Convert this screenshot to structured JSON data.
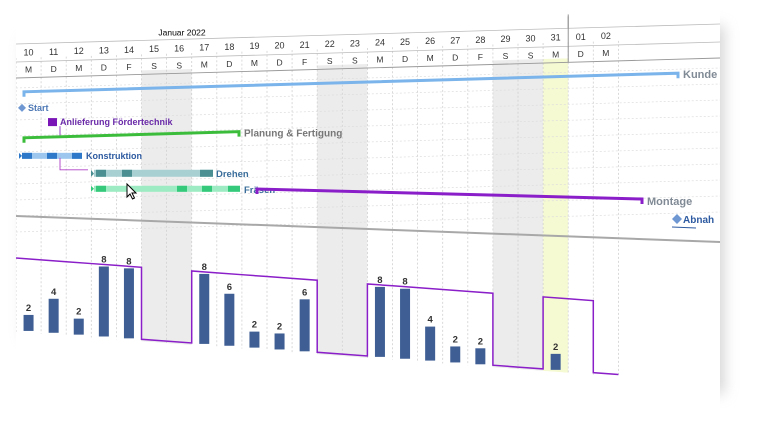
{
  "header": {
    "month_label": "Januar 2022"
  },
  "timeline": {
    "days": [
      {
        "num": "10",
        "wd": "M"
      },
      {
        "num": "11",
        "wd": "D"
      },
      {
        "num": "12",
        "wd": "M"
      },
      {
        "num": "13",
        "wd": "D"
      },
      {
        "num": "14",
        "wd": "F"
      },
      {
        "num": "15",
        "wd": "S"
      },
      {
        "num": "16",
        "wd": "S"
      },
      {
        "num": "17",
        "wd": "M"
      },
      {
        "num": "18",
        "wd": "D"
      },
      {
        "num": "19",
        "wd": "M"
      },
      {
        "num": "20",
        "wd": "D"
      },
      {
        "num": "21",
        "wd": "F"
      },
      {
        "num": "22",
        "wd": "S"
      },
      {
        "num": "23",
        "wd": "S"
      },
      {
        "num": "24",
        "wd": "M"
      },
      {
        "num": "25",
        "wd": "D"
      },
      {
        "num": "26",
        "wd": "M"
      },
      {
        "num": "27",
        "wd": "D"
      },
      {
        "num": "28",
        "wd": "F"
      },
      {
        "num": "29",
        "wd": "S"
      },
      {
        "num": "30",
        "wd": "S"
      },
      {
        "num": "31",
        "wd": "M"
      },
      {
        "num": "01",
        "wd": "D"
      },
      {
        "num": "02",
        "wd": "M"
      }
    ],
    "weekend_indices": [
      5,
      6,
      12,
      13,
      19,
      20
    ],
    "highlight_index": 21
  },
  "tasks": {
    "kunde": "Kunde",
    "start": "Start",
    "anlieferung": "Anlieferung Fördertechnik",
    "planung": "Planung & Fertigung",
    "konstruktion": "Konstruktion",
    "drehen": "Drehen",
    "fraesen": "Fräsen",
    "montage": "Montage",
    "abnahme": "Abnah"
  },
  "chart_data": {
    "type": "bar",
    "title": "",
    "categories": [
      "10",
      "11",
      "12",
      "13",
      "14",
      "15",
      "16",
      "17",
      "18",
      "19",
      "20",
      "21",
      "22",
      "23",
      "24",
      "25",
      "26",
      "27",
      "28",
      "29",
      "30",
      "31",
      "01",
      "02"
    ],
    "values": [
      2,
      4,
      2,
      8,
      8,
      0,
      0,
      8,
      6,
      2,
      2,
      6,
      0,
      0,
      8,
      8,
      4,
      2,
      2,
      0,
      0,
      2,
      0,
      0
    ],
    "capacity": [
      8,
      8,
      8,
      8,
      8,
      0,
      0,
      8,
      8,
      8,
      8,
      8,
      0,
      0,
      8,
      8,
      8,
      8,
      8,
      0,
      0,
      8,
      8,
      0
    ],
    "value_labels": [
      "2",
      "4",
      "2",
      "8",
      "8",
      "",
      "",
      "8",
      "6",
      "2",
      "2",
      "6",
      "",
      "",
      "8",
      "8",
      "4",
      "2",
      "2",
      "",
      "",
      "2",
      "",
      ""
    ]
  },
  "colors": {
    "bar": "#3e5e94",
    "capacity_line": "#8a1ec8",
    "weekend": "#ececec",
    "highlight": "#f6fad2",
    "kunde": "#7ab4ea",
    "planung": "#3bbd3b",
    "konstruktion": "#2d78c8",
    "drehen": "#4b8f93",
    "fraesen": "#35c97c",
    "montage": "#8a1ec8",
    "milestone": "#6f98d3",
    "anlieferung": "#7a15b8"
  }
}
